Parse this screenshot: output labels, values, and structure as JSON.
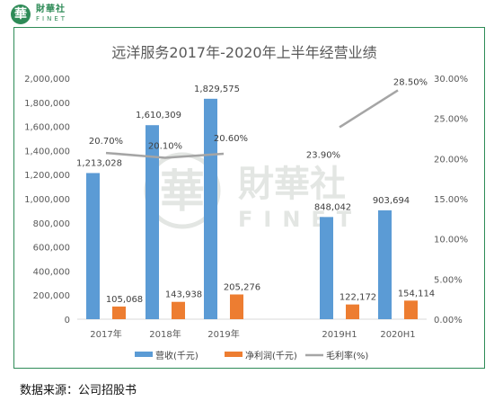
{
  "brand": {
    "seal": "華",
    "name": "財華社",
    "name_en": "FINET"
  },
  "watermark": {
    "seal": "華",
    "name": "財華社",
    "name_en": "FINET"
  },
  "footer": {
    "source": "数据来源：公司招股书"
  },
  "colors": {
    "revenue": "#5b9bd5",
    "profit": "#ed7d31",
    "margin": "#a5a5a5",
    "frame": "#2e8b57"
  },
  "chart_data": {
    "type": "bar",
    "title": "远洋服务2017年-2020年上半年经营业绩",
    "categories": [
      "2017年",
      "2018年",
      "2019年",
      "2019H1",
      "2020H1"
    ],
    "series": [
      {
        "name": "营收(千元)",
        "type": "bar",
        "axis": "left",
        "values": [
          1213028,
          1610309,
          1829575,
          848042,
          903694
        ],
        "labels": [
          "1,213,028",
          "1,610,309",
          "1,829,575",
          "848,042",
          "903,694"
        ]
      },
      {
        "name": "净利润(千元)",
        "type": "bar",
        "axis": "left",
        "values": [
          105068,
          143938,
          205276,
          122172,
          154114
        ],
        "labels": [
          "105,068",
          "143,938",
          "205,276",
          "122,172",
          "154,114"
        ]
      },
      {
        "name": "毛利率(%)",
        "type": "line",
        "axis": "right",
        "values": [
          20.7,
          20.1,
          20.6,
          23.9,
          28.5
        ],
        "labels": [
          "20.70%",
          "20.10%",
          "20.60%",
          "23.90%",
          "28.50%"
        ],
        "segments": [
          [
            0,
            1,
            2
          ],
          [
            3,
            4
          ]
        ]
      }
    ],
    "y_left": {
      "lim": [
        0,
        2000000
      ],
      "ticks": [
        "0",
        "200,000",
        "400,000",
        "600,000",
        "800,000",
        "1,000,000",
        "1,200,000",
        "1,400,000",
        "1,600,000",
        "1,800,000",
        "2,000,000"
      ]
    },
    "y_right": {
      "lim": [
        0,
        30
      ],
      "ticks": [
        "0.00%",
        "5.00%",
        "10.00%",
        "15.00%",
        "20.00%",
        "25.00%",
        "30.00%"
      ]
    },
    "grid": false,
    "legend": "bottom"
  }
}
